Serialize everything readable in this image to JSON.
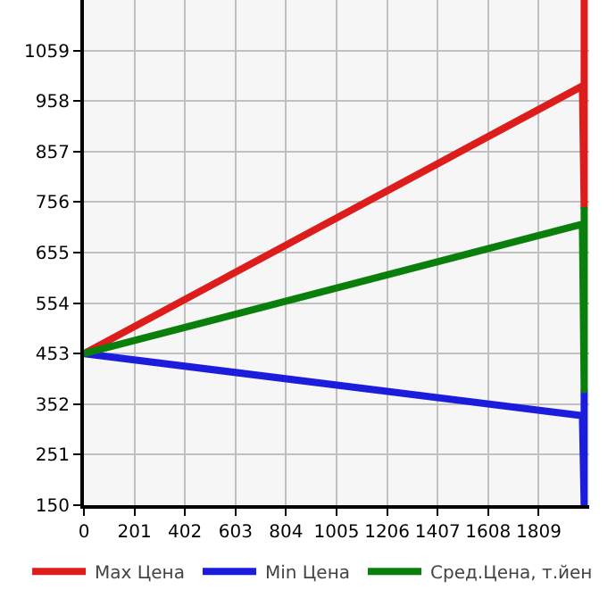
{
  "chart_data": {
    "type": "line",
    "xlim": [
      0,
      2010
    ],
    "xticks": [
      0,
      201,
      402,
      603,
      804,
      1005,
      1206,
      1407,
      1608,
      1809
    ],
    "ylim": [
      150,
      1160
    ],
    "yticks": [
      150,
      251,
      352,
      453,
      554,
      655,
      756,
      857,
      958,
      1059
    ],
    "grid": true,
    "legend": "bottom",
    "marker": "none",
    "line_style": "solid",
    "series": [
      {
        "name": "Max Цена",
        "color": "#dd1c1c",
        "x": [
          0,
          1983,
          1990,
          1990
        ],
        "values": [
          453,
          988,
          746,
          1160
        ]
      },
      {
        "name": "Min Цена",
        "color": "#1c1cdd",
        "x": [
          0,
          1983,
          1990,
          1990
        ],
        "values": [
          453,
          329,
          150,
          381
        ]
      },
      {
        "name": "Сред.Цена, т.йен",
        "color": "#0b7f0b",
        "x": [
          0,
          1983,
          1990,
          1990
        ],
        "values": [
          453,
          712,
          381,
          746
        ]
      }
    ]
  }
}
